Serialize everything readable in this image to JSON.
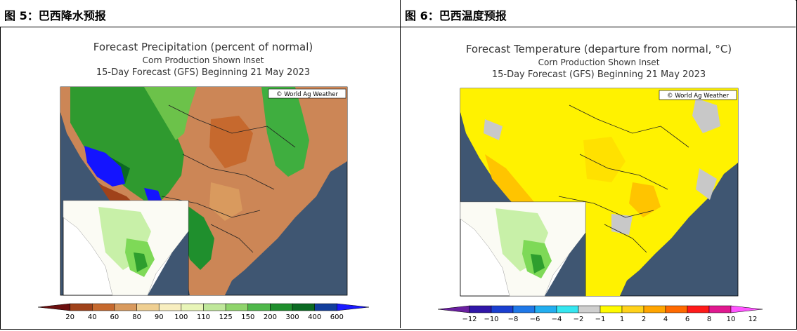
{
  "headers": {
    "left": "图 5：巴西降水预报",
    "right": "图 6：巴西温度预报"
  },
  "chart_data": [
    {
      "type": "heatmap",
      "title": "Forecast Precipitation (percent of normal)",
      "subtitle_1": "Corn Production Shown Inset",
      "subtitle_2": "15-Day Forecast (GFS) Beginning 21 May 2023",
      "credit": "© World Ag Weather",
      "legend_values": [
        "20",
        "40",
        "60",
        "80",
        "90",
        "100",
        "110",
        "125",
        "150",
        "200",
        "300",
        "400",
        "600"
      ],
      "legend_colors": [
        "#6b0f0f",
        "#a0421a",
        "#c6692e",
        "#d99a5e",
        "#efcf92",
        "#f8eec0",
        "#e8f5b8",
        "#bfe79a",
        "#8fd46b",
        "#4fb84a",
        "#1f8f2d",
        "#0b6a22",
        "#123e9c",
        "#1a1aff"
      ],
      "colors": {
        "ocean": "#3f5672",
        "land_dry": "#cc8656",
        "land_wet": "#2f9a2f",
        "very_wet": "#1414ff",
        "inset_land": "#ffffff",
        "inset_crop": "#7ed957"
      }
    },
    {
      "type": "heatmap",
      "title": "Forecast Temperature (departure from normal, °C)",
      "subtitle_1": "Corn Production Shown Inset",
      "subtitle_2": "15-Day Forecast (GFS) Beginning 21 May 2023",
      "credit": "© World Ag Weather",
      "legend_values": [
        "−12",
        "−10",
        "−8",
        "−6",
        "−4",
        "−2",
        "−1",
        "1",
        "2",
        "4",
        "6",
        "8",
        "10",
        "12"
      ],
      "legend_colors": [
        "#6a1fa0",
        "#3016a8",
        "#1a3fd0",
        "#1f78e8",
        "#22aef0",
        "#35e6f0",
        "#cfcfcf",
        "#fffb00",
        "#ffd21a",
        "#ffa500",
        "#ff6a00",
        "#ff1a1a",
        "#e0188f",
        "#ff55ff"
      ],
      "colors": {
        "ocean": "#3f5672",
        "warm": "#fff200",
        "warmer": "#ffc400",
        "neutral": "#c8c8c8",
        "inset_land": "#ffffff",
        "inset_crop": "#7ed957"
      }
    }
  ]
}
